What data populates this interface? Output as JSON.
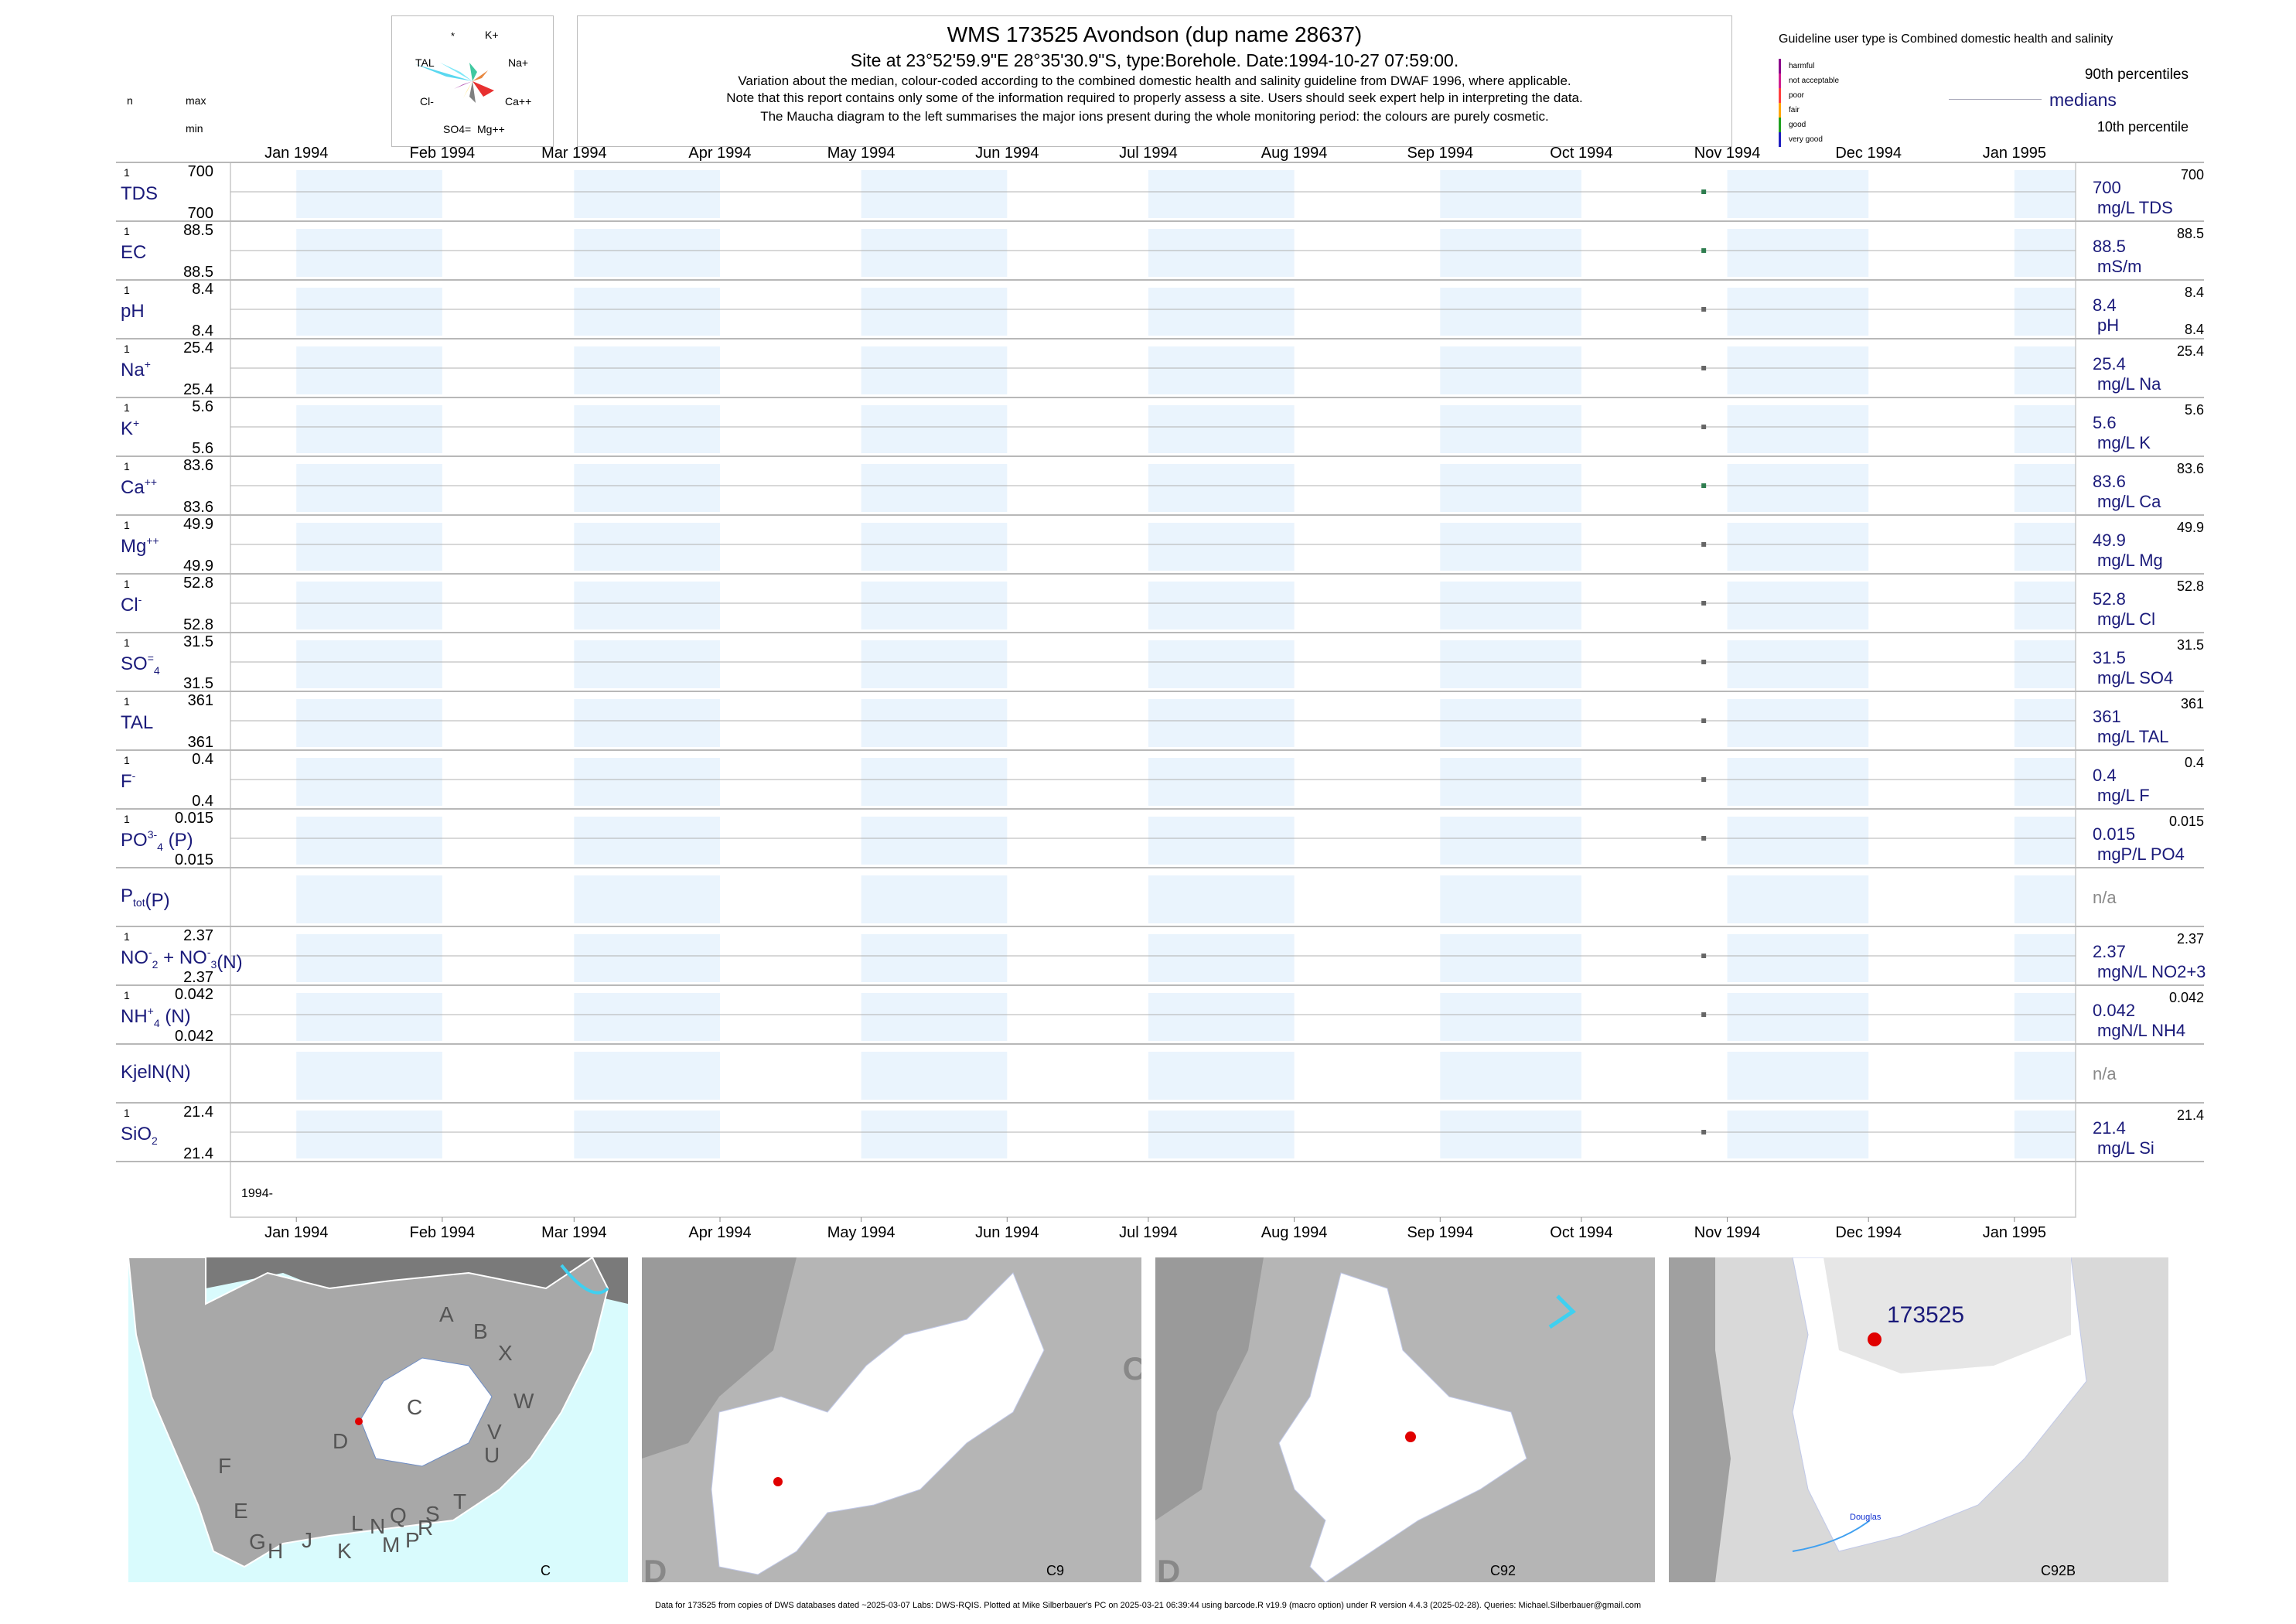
{
  "header": {
    "title": "WMS 173525  Avondson (dup name 28637)",
    "subtitle": "Site at 23°52'59.9\"E 28°35'30.9\"S, type:Borehole. Date:1994-10-27 07:59:00.",
    "note1": "Variation about the median,  colour-coded according to the combined domestic health and salinity guideline from DWAF 1996, where applicable.",
    "note2": "Note that this report contains only some of the information required to properly assess a site. Users should seek expert help in interpreting the data.",
    "note3": "The Maucha diagram to the left summarises the major ions present during the whole monitoring period: the colours are purely cosmetic."
  },
  "left_header": {
    "n": "n",
    "max": "max",
    "min": "min"
  },
  "maucha": {
    "labels": [
      "*",
      "K+",
      "TAL",
      "Na+",
      "Cl-",
      "Ca++",
      "SO4=",
      "Mg++"
    ],
    "colors": [
      "#5ad8f0",
      "#40c8a0",
      "#e88840",
      "#e83030",
      "#808080",
      "#a0a0a0",
      "#ffe060",
      "#b050b0"
    ]
  },
  "legend": {
    "guideline_text": "Guideline user type is Combined domestic health and salinity",
    "classes": [
      "harmful",
      "not acceptable",
      "poor",
      "fair",
      "good",
      "very good"
    ],
    "class_colors": [
      "#8b008b",
      "#d02090",
      "#ff4040",
      "#ffa500",
      "#20a020",
      "#2020c0"
    ],
    "p90": "90th percentiles",
    "medians": "medians",
    "p10": "10th percentile"
  },
  "chart_data": {
    "type": "scatter",
    "x_axis": {
      "range": [
        "1993-12-18",
        "1995-01-14"
      ],
      "tick_labels": [
        "Jan 1994",
        "Feb 1994",
        "Mar 1994",
        "Apr 1994",
        "May 1994",
        "Jun 1994",
        "Jul 1994",
        "Aug 1994",
        "Sep 1994",
        "Oct 1994",
        "Nov 1994",
        "Dec 1994",
        "Jan 1995"
      ],
      "tick_dates": [
        "1994-01-01",
        "1994-02-01",
        "1994-03-01",
        "1994-04-01",
        "1994-05-01",
        "1994-06-01",
        "1994-07-01",
        "1994-08-01",
        "1994-09-01",
        "1994-10-01",
        "1994-11-01",
        "1994-12-01",
        "1995-01-01"
      ],
      "year_label": "1994-"
    },
    "sample_date": "1994-10-27",
    "panels": [
      {
        "label": "TDS",
        "sup": "",
        "sub": "",
        "n": "1",
        "max": "700",
        "min": "700",
        "median": "700",
        "unit": "mg/L TDS",
        "p90": "700",
        "p10": "",
        "value": 700,
        "color": "#2e7d4f"
      },
      {
        "label": "EC",
        "sup": "",
        "sub": "",
        "n": "1",
        "max": "88.5",
        "min": "88.5",
        "median": "88.5",
        "unit": "mS/m",
        "p90": "88.5",
        "p10": "",
        "value": 88.5,
        "color": "#2e7d4f"
      },
      {
        "label": "pH",
        "sup": "",
        "sub": "",
        "n": "1",
        "max": "8.4",
        "min": "8.4",
        "median": "8.4",
        "unit": "pH",
        "p90": "8.4",
        "p10": "8.4",
        "value": 8.4,
        "color": "#666666"
      },
      {
        "label": "Na",
        "sup": "+",
        "sub": "",
        "n": "1",
        "max": "25.4",
        "min": "25.4",
        "median": "25.4",
        "unit": "mg/L Na",
        "p90": "25.4",
        "p10": "",
        "value": 25.4,
        "color": "#666666"
      },
      {
        "label": "K",
        "sup": "+",
        "sub": "",
        "n": "1",
        "max": "5.6",
        "min": "5.6",
        "median": "5.6",
        "unit": "mg/L K",
        "p90": "5.6",
        "p10": "",
        "value": 5.6,
        "color": "#666666"
      },
      {
        "label": "Ca",
        "sup": "++",
        "sub": "",
        "n": "1",
        "max": "83.6",
        "min": "83.6",
        "median": "83.6",
        "unit": "mg/L Ca",
        "p90": "83.6",
        "p10": "",
        "value": 83.6,
        "color": "#2e7d4f"
      },
      {
        "label": "Mg",
        "sup": "++",
        "sub": "",
        "n": "1",
        "max": "49.9",
        "min": "49.9",
        "median": "49.9",
        "unit": "mg/L Mg",
        "p90": "49.9",
        "p10": "",
        "value": 49.9,
        "color": "#666666"
      },
      {
        "label": "Cl",
        "sup": "-",
        "sub": "",
        "n": "1",
        "max": "52.8",
        "min": "52.8",
        "median": "52.8",
        "unit": "mg/L Cl",
        "p90": "52.8",
        "p10": "",
        "value": 52.8,
        "color": "#666666"
      },
      {
        "label": "SO",
        "sup": "=",
        "sub": "4",
        "n": "1",
        "max": "31.5",
        "min": "31.5",
        "median": "31.5",
        "unit": "mg/L SO4",
        "p90": "31.5",
        "p10": "",
        "value": 31.5,
        "color": "#666666"
      },
      {
        "label": "TAL",
        "sup": "",
        "sub": "",
        "n": "1",
        "max": "361",
        "min": "361",
        "median": "361",
        "unit": "mg/L TAL",
        "p90": "361",
        "p10": "",
        "value": 361,
        "color": "#666666"
      },
      {
        "label": "F",
        "sup": "-",
        "sub": "",
        "n": "1",
        "max": "0.4",
        "min": "0.4",
        "median": "0.4",
        "unit": "mg/L F",
        "p90": "0.4",
        "p10": "",
        "value": 0.4,
        "color": "#666666"
      },
      {
        "label": "PO",
        "sup": "3-",
        "sub": "4",
        "tail": "(P)",
        "n": "1",
        "max": "0.015",
        "min": "0.015",
        "median": "0.015",
        "unit": "mgP/L PO4",
        "p90": "0.015",
        "p10": "",
        "value": 0.015,
        "color": "#666666"
      },
      {
        "label": "P",
        "sup": "",
        "sub": "tot",
        "tail": "(P)",
        "n": "",
        "max": "",
        "min": "",
        "median": "n/a",
        "unit": "",
        "p90": "",
        "p10": "",
        "value": null,
        "color": "#666666"
      },
      {
        "label": "NO",
        "sup": "-",
        "sub": "2",
        "tail": "+ NO",
        "sup2": "-",
        "sub2": "3",
        "tail2": "(N)",
        "n": "1",
        "max": "2.37",
        "min": "2.37",
        "median": "2.37",
        "unit": "mgN/L NO2+3",
        "p90": "2.37",
        "p10": "",
        "value": 2.37,
        "color": "#666666"
      },
      {
        "label": "NH",
        "sup": "+",
        "sub": "4",
        "tail": "(N)",
        "n": "1",
        "max": "0.042",
        "min": "0.042",
        "median": "0.042",
        "unit": "mgN/L NH4",
        "p90": "0.042",
        "p10": "",
        "value": 0.042,
        "color": "#666666"
      },
      {
        "label": "KjelN(N)",
        "sup": "",
        "sub": "",
        "n": "",
        "max": "",
        "min": "",
        "median": "n/a",
        "unit": "",
        "p90": "",
        "p10": "",
        "value": null,
        "color": "#666666"
      },
      {
        "label": "SiO",
        "sup": "",
        "sub": "2",
        "n": "1",
        "max": "21.4",
        "min": "21.4",
        "median": "21.4",
        "unit": "mg/L Si",
        "p90": "21.4",
        "p10": "",
        "value": 21.4,
        "color": "#666666"
      }
    ]
  },
  "maps": [
    {
      "corner_label": "C",
      "region_letters": [
        "A",
        "B",
        "X",
        "W",
        "C",
        "V",
        "D",
        "U",
        "T",
        "F",
        "E",
        "S",
        "L",
        "N",
        "Q",
        "R",
        "G",
        "H",
        "J",
        "K",
        "M",
        "P"
      ]
    },
    {
      "corner_label": "C9",
      "edge_letters": [
        "D",
        "C"
      ]
    },
    {
      "corner_label": "C92",
      "edge_letters": [
        "D"
      ]
    },
    {
      "corner_label": "C92B",
      "site_label": "173525",
      "town": "Douglas"
    }
  ],
  "footer": "Data for 173525 from copies of DWS databases dated ~2025-03-07 Labs: DWS-RQIS. Plotted at Mike Silberbauer's PC on 2025-03-21 06:39:44 using barcode.R v19.9 (macro option) under R version 4.4.3 (2025-02-28). Queries: Michael.Silberbauer@gmail.com"
}
